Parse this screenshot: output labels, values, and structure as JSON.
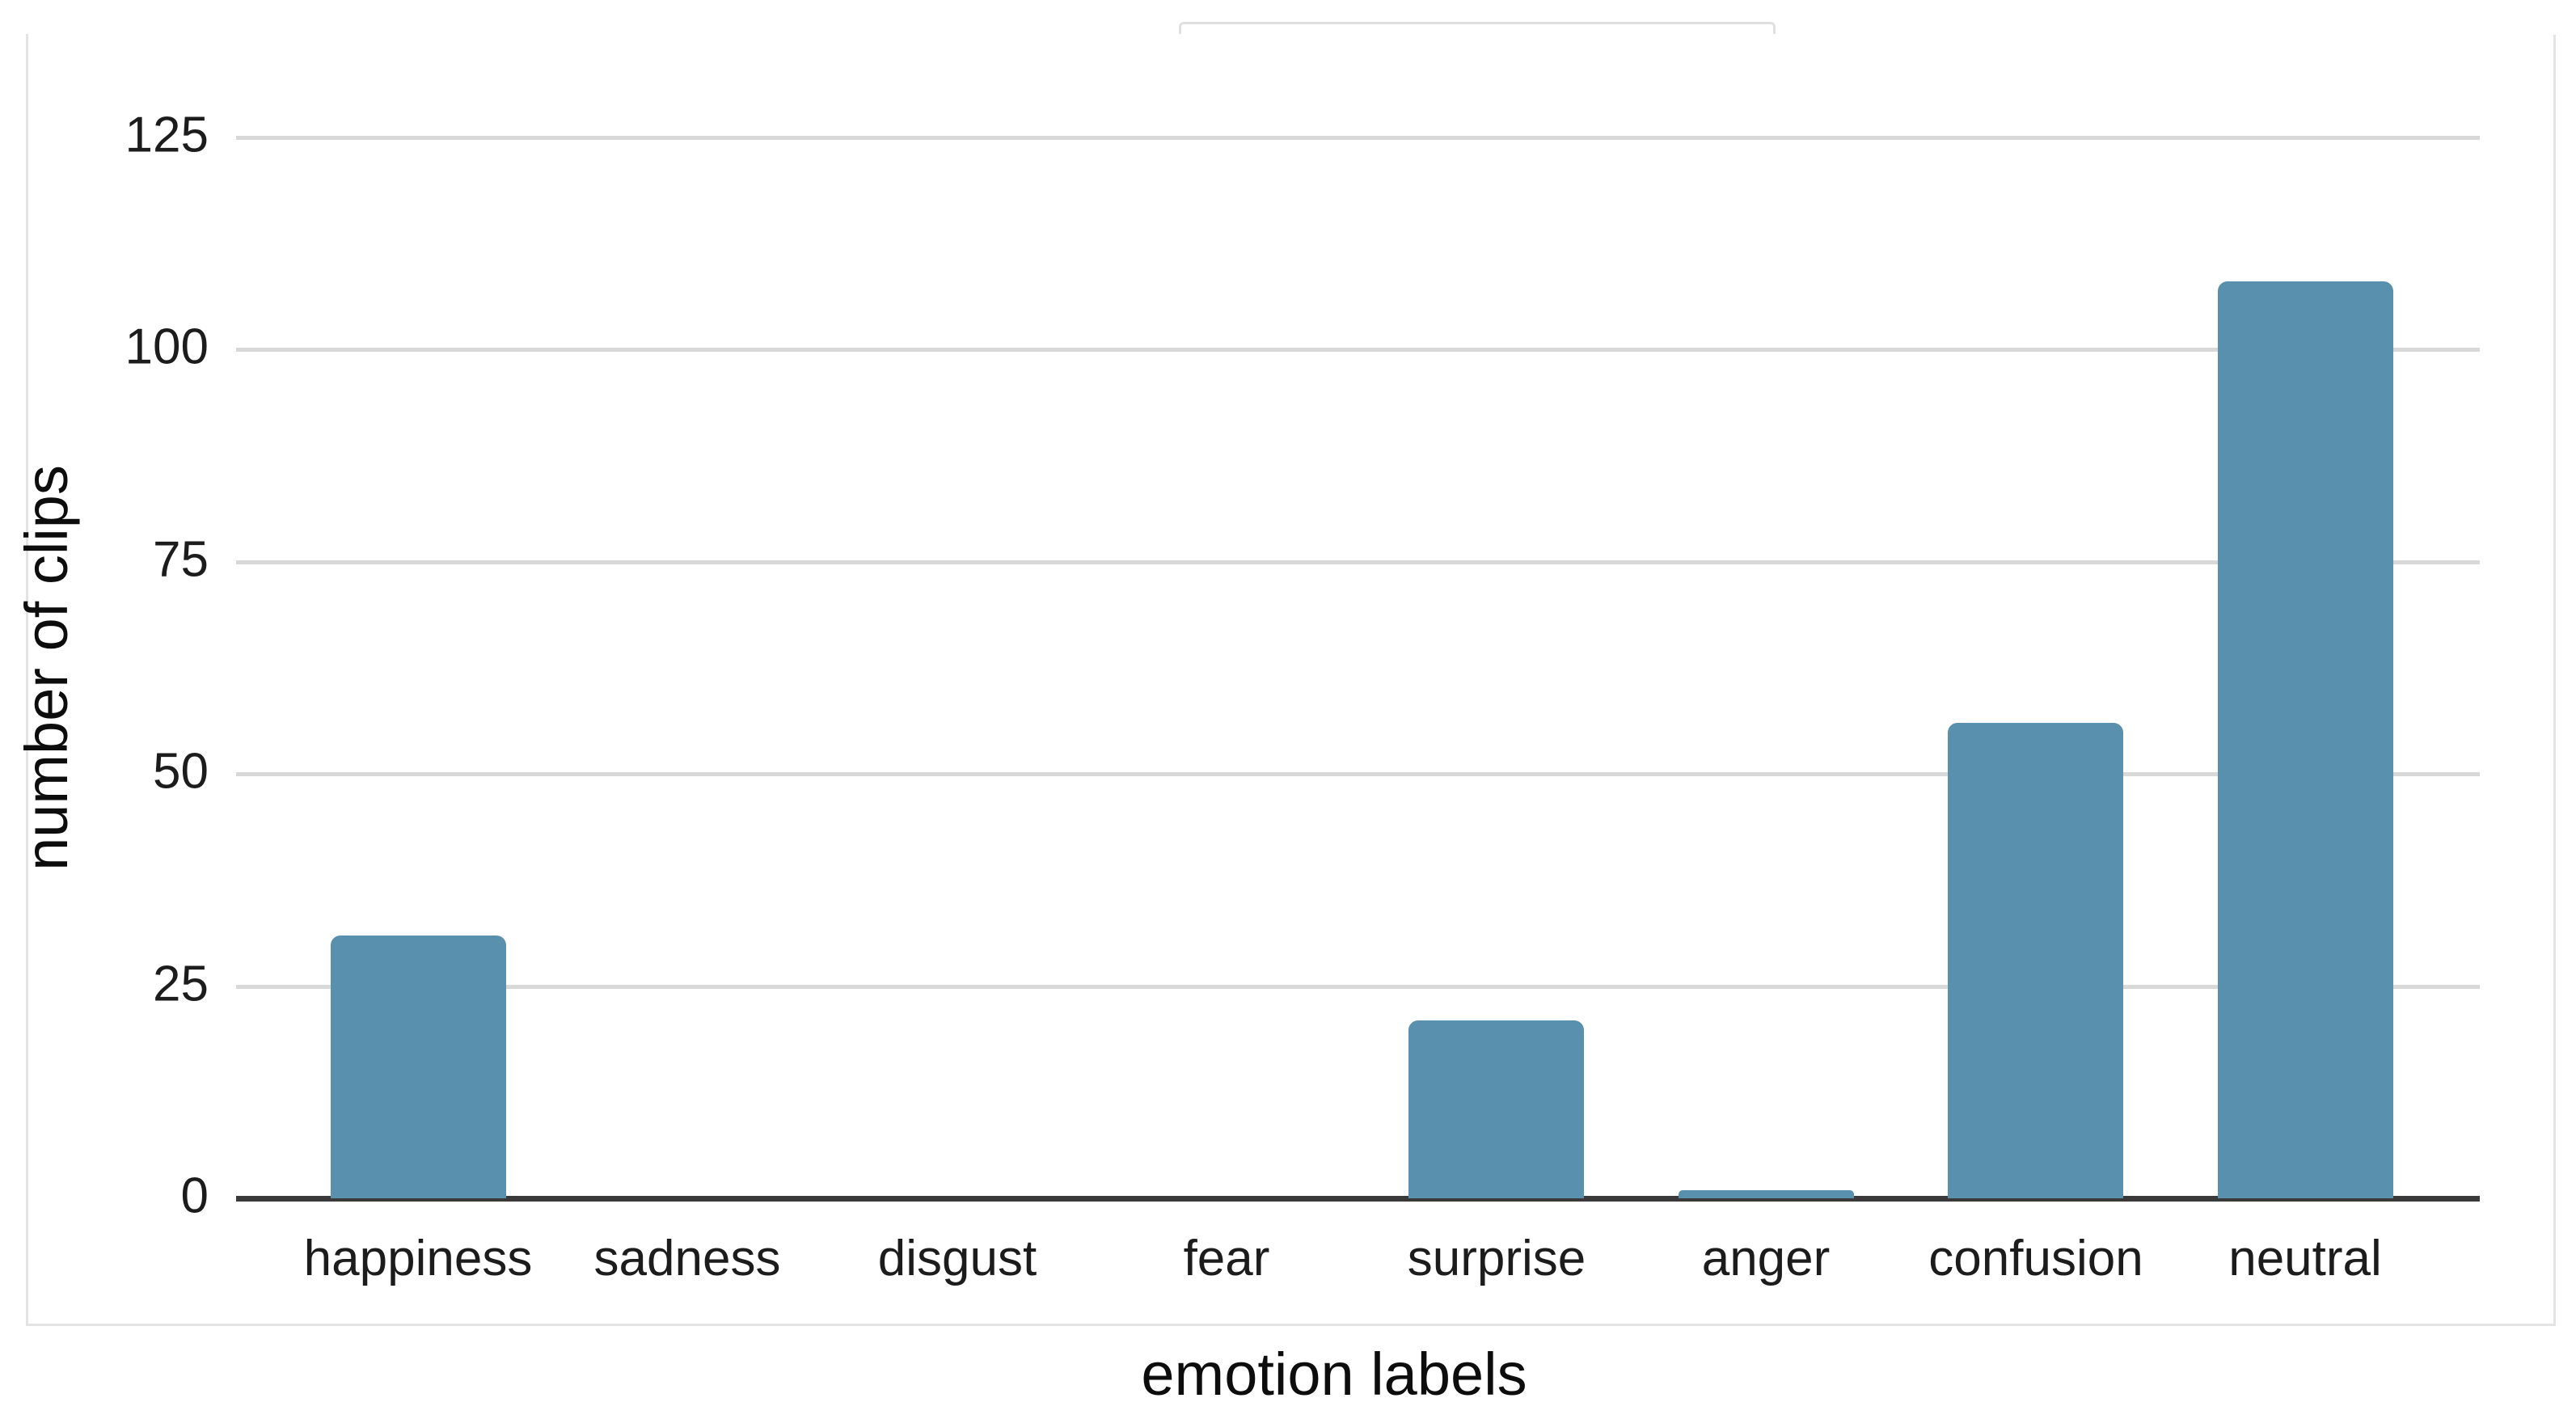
{
  "chart_data": {
    "type": "bar",
    "title": "",
    "categories": [
      "happiness",
      "sadness",
      "disgust",
      "fear",
      "surprise",
      "anger",
      "confusion",
      "neutral"
    ],
    "values": [
      31,
      0,
      0,
      0,
      21,
      1,
      56,
      108
    ],
    "xlabel": "emotion labels",
    "ylabel": "number of clips",
    "yticks": [
      0,
      25,
      50,
      75,
      100,
      125
    ],
    "ylim": [
      0,
      131
    ],
    "grid": true,
    "legend": false,
    "bar_color": "#5890ae",
    "gridline_color": "#d8d8d8",
    "axis_line_color": "#3a3a3a",
    "tick_label_color": "#1c1c1c",
    "background_color": "#ffffff",
    "border_color": "#e4e4e4"
  }
}
